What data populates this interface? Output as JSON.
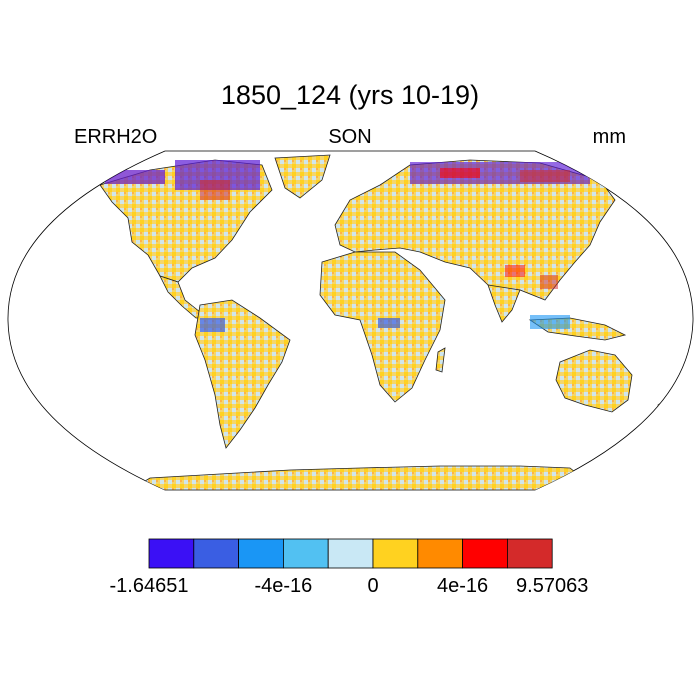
{
  "title": "1850_124 (yrs 10-19)",
  "left_label": "ERRH2O",
  "center_label": "SON",
  "right_label": "mm",
  "colorbar": {
    "colors": [
      "#3b10f5",
      "#3a5ee3",
      "#1a96f5",
      "#52c1f2",
      "#c9e8f5",
      "#ffd220",
      "#ff8a00",
      "#ff0000",
      "#d42a2a"
    ],
    "tick_labels": [
      "-1.64651",
      "-4e-16",
      "0",
      "4e-16",
      "9.57063"
    ]
  },
  "map": {
    "projection": "robinson",
    "field_summary": "mostly near-zero values (yellow/light blue) over land, strong extremes at high northern latitudes, Amazon and equatorial regions"
  }
}
